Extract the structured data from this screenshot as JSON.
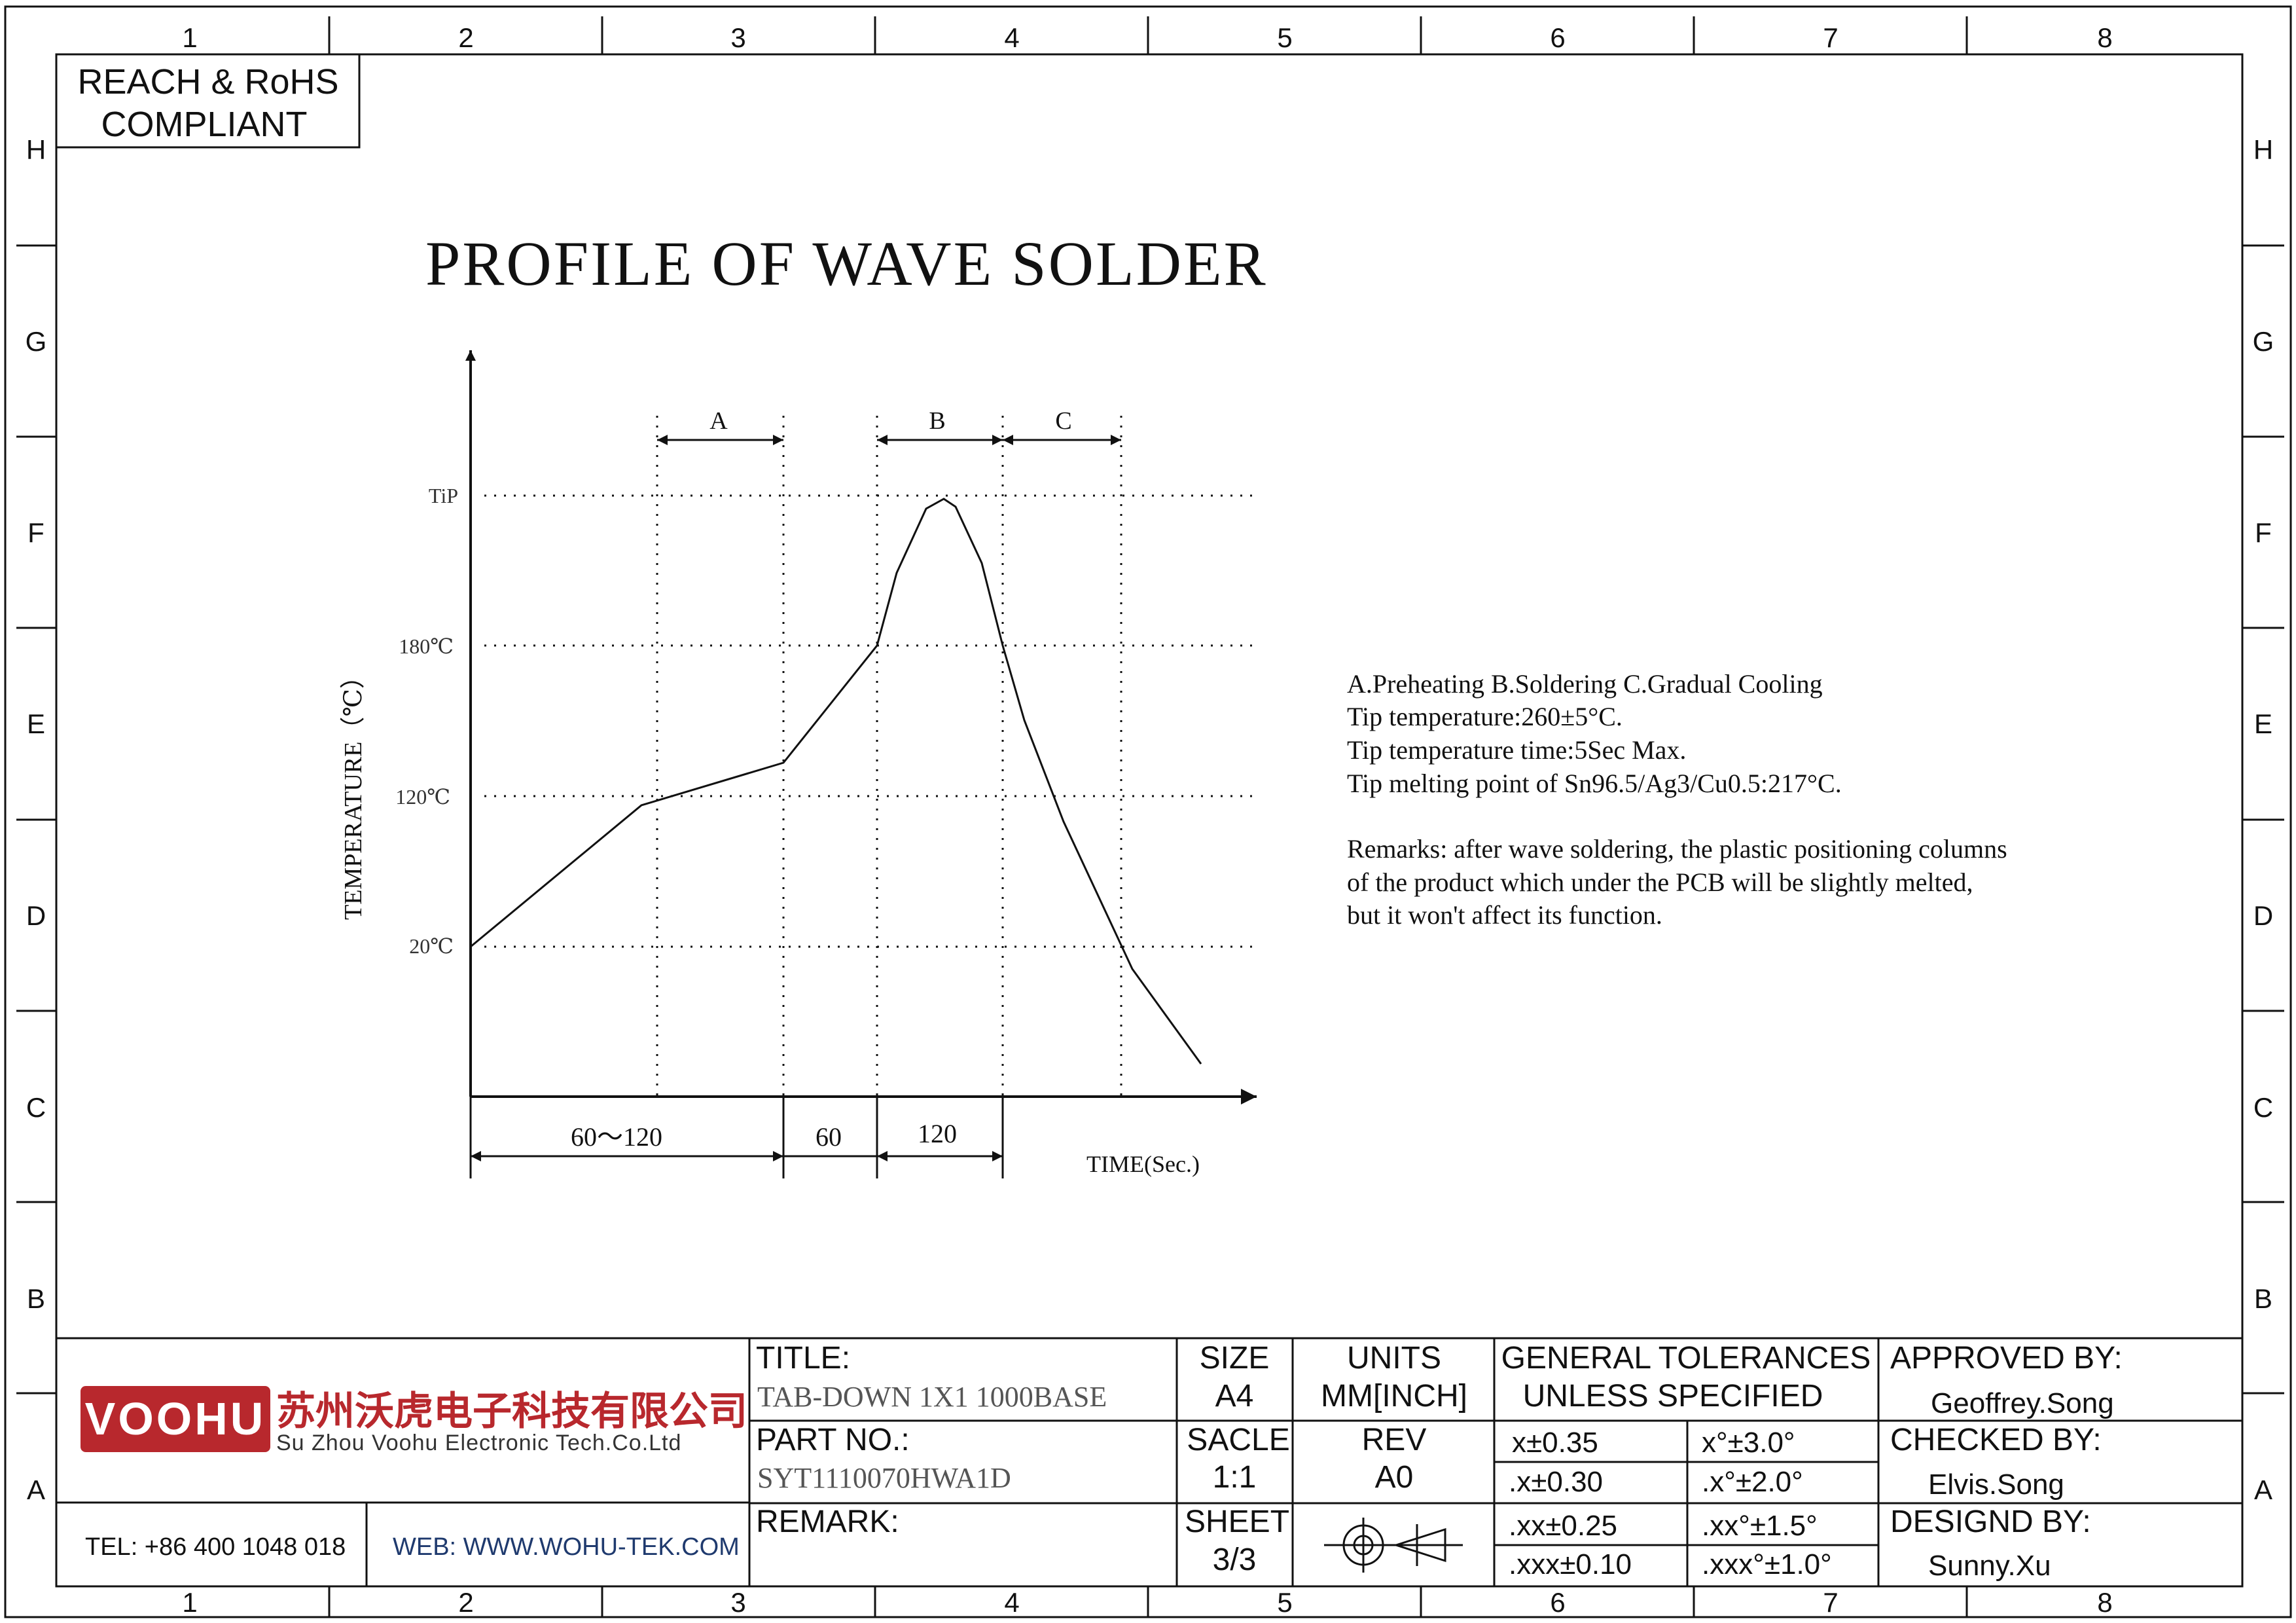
{
  "compliance": {
    "line1": "REACH & RoHS",
    "line2": "COMPLIANT"
  },
  "grid": {
    "columns": [
      "1",
      "2",
      "3",
      "4",
      "5",
      "6",
      "7",
      "8"
    ],
    "rows": [
      "H",
      "G",
      "F",
      "E",
      "D",
      "C",
      "B",
      "A"
    ]
  },
  "drawing": {
    "title": "PROFILE OF WAVE SOLDER",
    "y_axis_label": "TEMPERATURE（℃）",
    "x_axis_label": "TIME(Sec.)",
    "temp_labels": {
      "tip": "TiP",
      "t180": "180℃",
      "t120": "120℃",
      "t20": "20℃"
    },
    "zones": {
      "a": "A",
      "b": "B",
      "c": "C"
    },
    "durations": {
      "d1": "60～120",
      "d2": "60",
      "d3": "120"
    }
  },
  "notes": {
    "lines": [
      "A.Preheating  B.Soldering  C.Gradual Cooling",
      "Tip temperature:260±5°C.",
      "Tip temperature time:5Sec Max.",
      "Tip melting point of Sn96.5/Ag3/Cu0.5:217°C."
    ],
    "remarks": [
      "Remarks: after wave soldering, the plastic positioning columns",
      "of the product  which under the PCB will be slightly melted,",
      "but it won't affect its function."
    ]
  },
  "titleblock": {
    "logo_text": "VOOHU",
    "company_cn": "苏州沃虎电子科技有限公司",
    "company_en": "Su Zhou Voohu Electronic Tech.Co.Ltd",
    "tel": "TEL: +86 400 1048 018",
    "web": "WEB: WWW.WOHU-TEK.COM",
    "title_label": "TITLE:",
    "title_value": "TAB-DOWN 1X1 1000BASE",
    "part_label": "PART NO.:",
    "part_value": "SYT1110070HWA1D",
    "remark_label": "REMARK:",
    "size_label": "SIZE",
    "size_value": "A4",
    "units_label": "UNITS",
    "units_value": "MM[INCH]",
    "scale_label": "SACLE",
    "scale_value": "1:1",
    "rev_label": "REV",
    "rev_value": "A0",
    "sheet_label": "SHEET",
    "sheet_value": "3/3",
    "tol_title1": "GENERAL TOLERANCES",
    "tol_title2": "UNLESS SPECIFIED",
    "tol": [
      [
        "x±0.35",
        "x°±3.0°"
      ],
      [
        ".x±0.30",
        ".x°±2.0°"
      ],
      [
        ".xx±0.25",
        ".xx°±1.5°"
      ],
      [
        ".xxx±0.10",
        ".xxx°±1.0°"
      ]
    ],
    "approved_label": "APPROVED BY:",
    "approved_value": "Geoffrey.Song",
    "checked_label": "CHECKED BY:",
    "checked_value": "Elvis.Song",
    "designed_label": "DESIGND BY:",
    "designed_value": "Sunny.Xu"
  }
}
